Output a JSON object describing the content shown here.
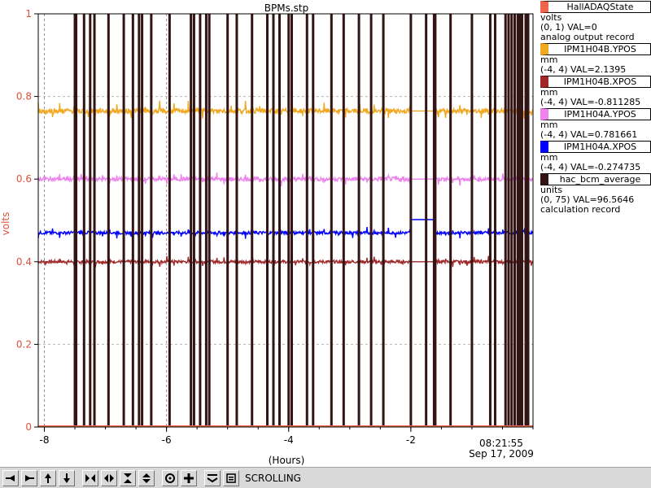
{
  "chart_data": {
    "type": "line",
    "title": "BPMs.stp",
    "ylabel": "volts",
    "xlabel": "(Hours)",
    "ylim": [
      0,
      1
    ],
    "xlim": [
      -8.1,
      0
    ],
    "yticks": [
      "0",
      "0.2",
      "0.4",
      "0.6",
      "0.8",
      "1"
    ],
    "ytick_values": [
      0,
      0.2,
      0.4,
      0.6,
      0.8,
      1
    ],
    "xticks": [
      "-8",
      "-6",
      "-4",
      "-2"
    ],
    "xtick_values": [
      -8,
      -6,
      -4,
      -2
    ],
    "time_label": "08:21:55",
    "date_label": "Sep 17, 2009",
    "grid": true,
    "series": [
      {
        "name": "HallADAQState",
        "color": "#f0644c",
        "baseline": 0.0,
        "noise": 0.0
      },
      {
        "name": "IPM1H04B.YPOS",
        "color": "#f0a820",
        "baseline": 0.765,
        "noise": 0.01
      },
      {
        "name": "IPM1H04B.XPOS",
        "color": "#a02828",
        "baseline": 0.4,
        "noise": 0.006
      },
      {
        "name": "IPM1H04A.YPOS",
        "color": "#ee82ee",
        "baseline": 0.6,
        "noise": 0.008
      },
      {
        "name": "IPM1H04A.XPOS",
        "color": "#0000ff",
        "baseline": 0.47,
        "noise": 0.006
      },
      {
        "name": "hac_bcm_average",
        "color": "#321414",
        "baseline": 0.005,
        "noise": 0.0
      }
    ],
    "beam_trips": [
      -7.5,
      -7.48,
      -7.35,
      -7.25,
      -7.18,
      -6.95,
      -6.7,
      -6.55,
      -6.45,
      -6.4,
      -6.25,
      -5.95,
      -5.6,
      -5.55,
      -5.45,
      -5.35,
      -5.3,
      -5.0,
      -4.85,
      -4.6,
      -4.35,
      -4.25,
      -4.15,
      -4.0,
      -3.95,
      -3.7,
      -3.6,
      -3.3,
      -3.1,
      -2.85,
      -2.65,
      -2.45,
      -1.75,
      -1.6,
      -1.35,
      -1.0,
      -0.7,
      -0.62,
      -0.45,
      -0.4,
      -0.35,
      -0.3,
      -0.25,
      -0.22,
      -0.18,
      -0.12,
      -0.08
    ],
    "beam_off": [
      [
        -2.0,
        -1.62
      ]
    ]
  },
  "legend": [
    {
      "name": "HallADAQState",
      "color": "#f0644c",
      "unit": "volts",
      "range": "(0, 1)",
      "value": "VAL=0",
      "desc": "analog output record"
    },
    {
      "name": "IPM1H04B.YPOS",
      "color": "#f0a820",
      "unit": "mm",
      "range": "(-4, 4)",
      "value": "VAL=2.1395",
      "desc": ""
    },
    {
      "name": "IPM1H04B.XPOS",
      "color": "#a02828",
      "unit": "mm",
      "range": "(-4, 4)",
      "value": "VAL=-0.811285",
      "desc": ""
    },
    {
      "name": "IPM1H04A.YPOS",
      "color": "#ee82ee",
      "unit": "mm",
      "range": "(-4, 4)",
      "value": "VAL=0.781661",
      "desc": ""
    },
    {
      "name": "IPM1H04A.XPOS",
      "color": "#0000ff",
      "unit": "mm",
      "range": "(-4, 4)",
      "value": "VAL=-0.274735",
      "desc": ""
    },
    {
      "name": "hac_bcm_average",
      "color": "#321414",
      "unit": "units",
      "range": "(0, 75)",
      "value": "VAL=96.5646",
      "desc": "calculation record"
    }
  ],
  "toolbar": {
    "buttons": [
      {
        "name": "scroll-left-icon",
        "glyph": "left"
      },
      {
        "name": "scroll-right-icon",
        "glyph": "right"
      },
      {
        "name": "scroll-up-icon",
        "glyph": "up"
      },
      {
        "name": "scroll-down-icon",
        "glyph": "down"
      },
      {
        "name": "zoom-in-x-icon",
        "glyph": "xin"
      },
      {
        "name": "zoom-out-x-icon",
        "glyph": "xout"
      },
      {
        "name": "zoom-in-y-icon",
        "glyph": "yin"
      },
      {
        "name": "zoom-out-y-icon",
        "glyph": "yout"
      },
      {
        "name": "auto-range-icon",
        "glyph": "circle"
      },
      {
        "name": "add-icon",
        "glyph": "plus"
      },
      {
        "name": "print-icon",
        "glyph": "print"
      },
      {
        "name": "config-icon",
        "glyph": "config"
      }
    ],
    "mode_label": "SCROLLING"
  }
}
